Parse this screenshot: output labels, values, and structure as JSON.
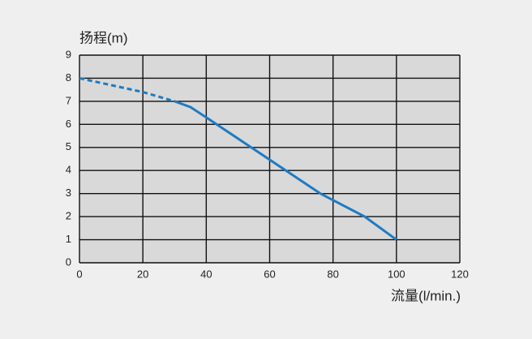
{
  "chart_data": {
    "type": "line",
    "y_label": "扬程(m)",
    "x_label": "流量(l/min.)",
    "x": [
      0,
      10,
      20,
      30,
      35,
      40,
      76,
      90,
      100
    ],
    "series": [
      {
        "color": "#1f7bc1",
        "dashed": true,
        "values": [
          8,
          7.7,
          7.4,
          7.0,
          null,
          null,
          null,
          null,
          null
        ]
      },
      {
        "color": "#1f7bc1",
        "dashed": false,
        "values": [
          null,
          null,
          null,
          7.0,
          6.75,
          6.3,
          3.0,
          2.0,
          1.0
        ]
      }
    ],
    "xlim": [
      0,
      120
    ],
    "xticks": [
      0,
      20,
      40,
      60,
      80,
      100,
      120
    ],
    "ylim": [
      0,
      9
    ],
    "yticks": [
      0,
      1,
      2,
      3,
      4,
      5,
      6,
      7,
      8,
      9
    ],
    "grid": true
  }
}
